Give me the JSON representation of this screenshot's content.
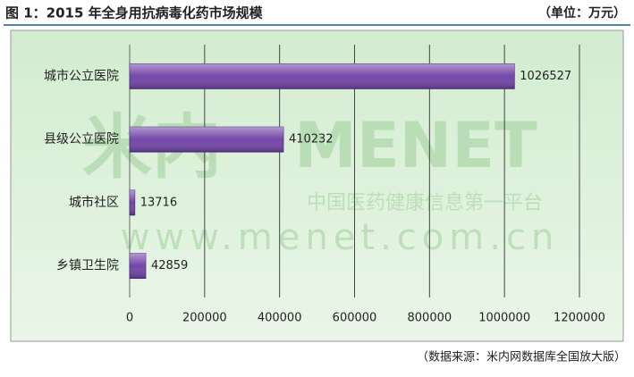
{
  "chart_data": {
    "type": "bar",
    "orientation": "horizontal",
    "title": "图 1：2015 年全身用抗病毒化药市场规模",
    "unit": "（单位：万元）",
    "source": "（数据来源：米内网数据库全国放大版）",
    "watermark": [
      "米内",
      "MENET",
      "中国医药健康信息第一平台",
      "www.menet.com.cn"
    ],
    "categories": [
      "城市公立医院",
      "县级公立医院",
      "城市社区",
      "乡镇卫生院"
    ],
    "values": [
      1026527,
      410232,
      13716,
      42859
    ],
    "color": "#7346a8",
    "xlim": [
      0,
      1200000
    ],
    "xticks": [
      0,
      200000,
      400000,
      600000,
      800000,
      1000000,
      1200000
    ],
    "grid": true
  }
}
